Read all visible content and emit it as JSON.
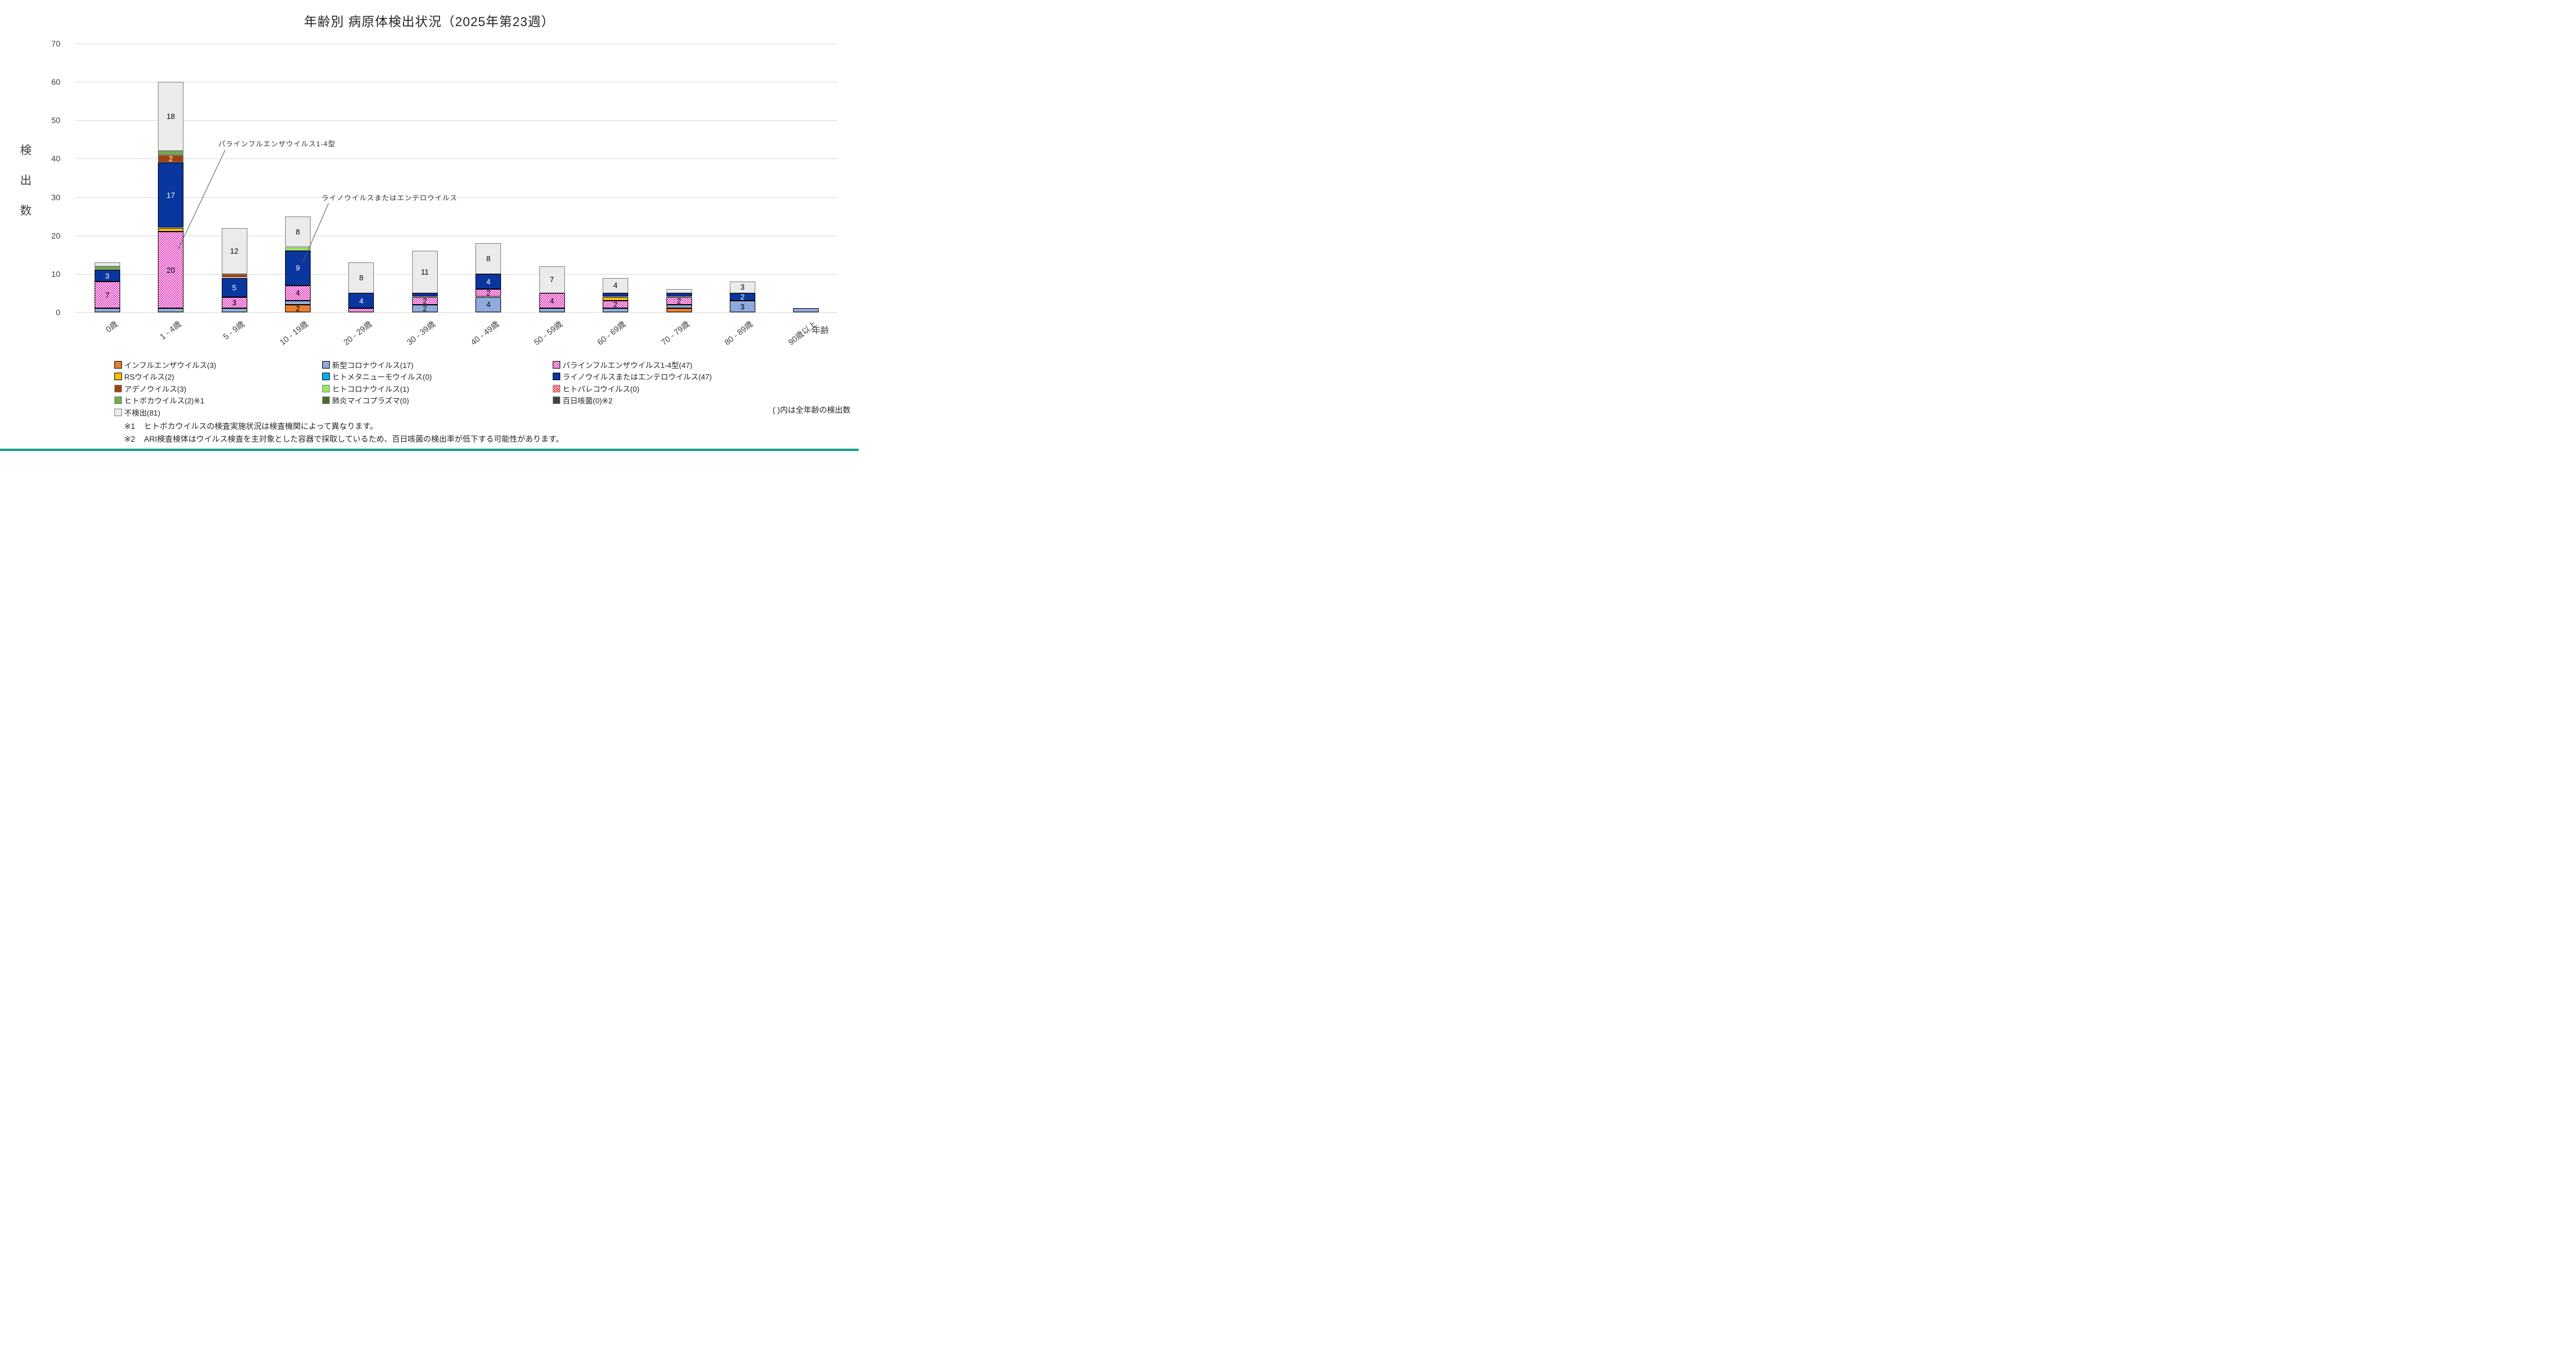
{
  "title": "年齢別 病原体検出状況（2025年第23週）",
  "y_axis": {
    "title": "検出数",
    "min": 0,
    "max": 70,
    "step": 10,
    "ticks": [
      0,
      10,
      20,
      30,
      40,
      50,
      60,
      70
    ]
  },
  "x_axis": {
    "title": "年齢"
  },
  "chart_data": {
    "type": "bar",
    "stacked": true,
    "grid": "horizontal",
    "ylim": [
      0,
      70
    ],
    "categories": [
      "0歳",
      "1 - 4歳",
      "5 - 9歳",
      "10 - 19歳",
      "20 - 29歳",
      "30 - 39歳",
      "40 - 49歳",
      "50 - 59歳",
      "60 - 69歳",
      "70 - 79歳",
      "80 - 89歳",
      "90歳以上"
    ],
    "category_totals": [
      13,
      60,
      22,
      25,
      13,
      16,
      18,
      12,
      9,
      6,
      8,
      1
    ],
    "series": [
      {
        "name": "インフルエンザウイルス",
        "total": 3,
        "color": "#ED7D31",
        "border": "#000000",
        "pattern": "none",
        "label_white": false,
        "values": [
          0,
          0,
          0,
          2,
          0,
          0,
          0,
          0,
          0,
          1,
          0,
          0
        ]
      },
      {
        "name": "新型コロナウイルス",
        "total": 17,
        "color": "#8FAADC",
        "border": "#000000",
        "pattern": "none",
        "label_white": false,
        "values": [
          1,
          1,
          1,
          1,
          0,
          2,
          4,
          1,
          1,
          1,
          3,
          1
        ]
      },
      {
        "name": "パラインフルエンザウイルス1-4型",
        "total": 47,
        "color": "#E33FBE",
        "border": "#000000",
        "pattern": "dots",
        "label_white": false,
        "values": [
          7,
          20,
          3,
          4,
          1,
          2,
          2,
          4,
          2,
          2,
          0,
          0
        ]
      },
      {
        "name": "RSウイルス",
        "total": 2,
        "color": "#FFC000",
        "border": "#000000",
        "pattern": "none",
        "label_white": false,
        "values": [
          0,
          1,
          0,
          0,
          0,
          0,
          0,
          0,
          1,
          0,
          0,
          0
        ]
      },
      {
        "name": "ヒトメタニューモウイルス",
        "total": 0,
        "color": "#00B0F0",
        "border": "#000000",
        "pattern": "none",
        "label_white": false,
        "values": [
          0,
          0,
          0,
          0,
          0,
          0,
          0,
          0,
          0,
          0,
          0,
          0
        ]
      },
      {
        "name": "ライノウイルスまたはエンテロウイルス",
        "total": 47,
        "color": "#0A36A0",
        "border": "#000000",
        "pattern": "none",
        "label_white": true,
        "values": [
          3,
          17,
          5,
          9,
          4,
          1,
          4,
          0,
          1,
          1,
          2,
          0
        ]
      },
      {
        "name": "アデノウイルス",
        "total": 3,
        "color": "#A0420F",
        "border": "#7F7F7F",
        "pattern": "none",
        "label_white": true,
        "values": [
          0,
          2,
          1,
          0,
          0,
          0,
          0,
          0,
          0,
          0,
          0,
          0
        ]
      },
      {
        "name": "ヒトコロナウイルス",
        "total": 1,
        "color": "#97E95D",
        "border": "#7F7F7F",
        "pattern": "none",
        "label_white": false,
        "values": [
          0,
          0,
          0,
          1,
          0,
          0,
          0,
          0,
          0,
          0,
          0,
          0
        ]
      },
      {
        "name": "ヒトパレコウイルス",
        "total": 0,
        "color": "#FF2B2B",
        "border": "#7F7F7F",
        "pattern": "dots",
        "label_white": false,
        "values": [
          0,
          0,
          0,
          0,
          0,
          0,
          0,
          0,
          0,
          0,
          0,
          0
        ]
      },
      {
        "name": "ヒトボカウイルス",
        "total": 2,
        "suffix": "※1",
        "color": "#70AD47",
        "border": "#7F7F7F",
        "pattern": "none",
        "label_white": false,
        "values": [
          1,
          1,
          0,
          0,
          0,
          0,
          0,
          0,
          0,
          0,
          0,
          0
        ]
      },
      {
        "name": "肺炎マイコプラズマ",
        "total": 0,
        "color": "#4A6B2A",
        "border": "#7F7F7F",
        "pattern": "none",
        "label_white": false,
        "values": [
          0,
          0,
          0,
          0,
          0,
          0,
          0,
          0,
          0,
          0,
          0,
          0
        ]
      },
      {
        "name": "百日咳菌",
        "total": 0,
        "suffix": "※2",
        "color": "#404040",
        "border": "#7F7F7F",
        "pattern": "none",
        "label_white": true,
        "values": [
          0,
          0,
          0,
          0,
          0,
          0,
          0,
          0,
          0,
          0,
          0,
          0
        ]
      },
      {
        "name": "不検出",
        "total": 81,
        "color": "#EBEBEB",
        "border": "#7F7F7F",
        "pattern": "none",
        "label_white": false,
        "values": [
          1,
          18,
          12,
          8,
          8,
          11,
          8,
          7,
          4,
          1,
          3,
          0
        ]
      }
    ],
    "label_rule": "segment value labels shown when value >= 2"
  },
  "legend": {
    "columns": [
      [
        0,
        3,
        6,
        9,
        12
      ],
      [
        1,
        4,
        7,
        10
      ],
      [
        2,
        5,
        8,
        11
      ]
    ]
  },
  "annotations": [
    {
      "text": "パラインフルエンザウイルス1-4型"
    },
    {
      "text": "ライノウイルスまたはエンテロウイルス"
    }
  ],
  "notes": {
    "unit_note": "( )内は全年齢の検出数",
    "footnotes": [
      {
        "mark": "※1",
        "text": "ヒトボカウイルスの検査実施状況は検査機関によって異なります。"
      },
      {
        "mark": "※2",
        "text": "ARI検査検体はウイルス検査を主対象とした容器で採取しているため、百日咳菌の検出率が低下する可能性があります。"
      }
    ]
  },
  "colors": {
    "gridline": "#D9D9D9",
    "leader_line": "#595959",
    "bottom_strip": "#18A089",
    "title_text": "#262626",
    "axis_text": "#404040"
  }
}
